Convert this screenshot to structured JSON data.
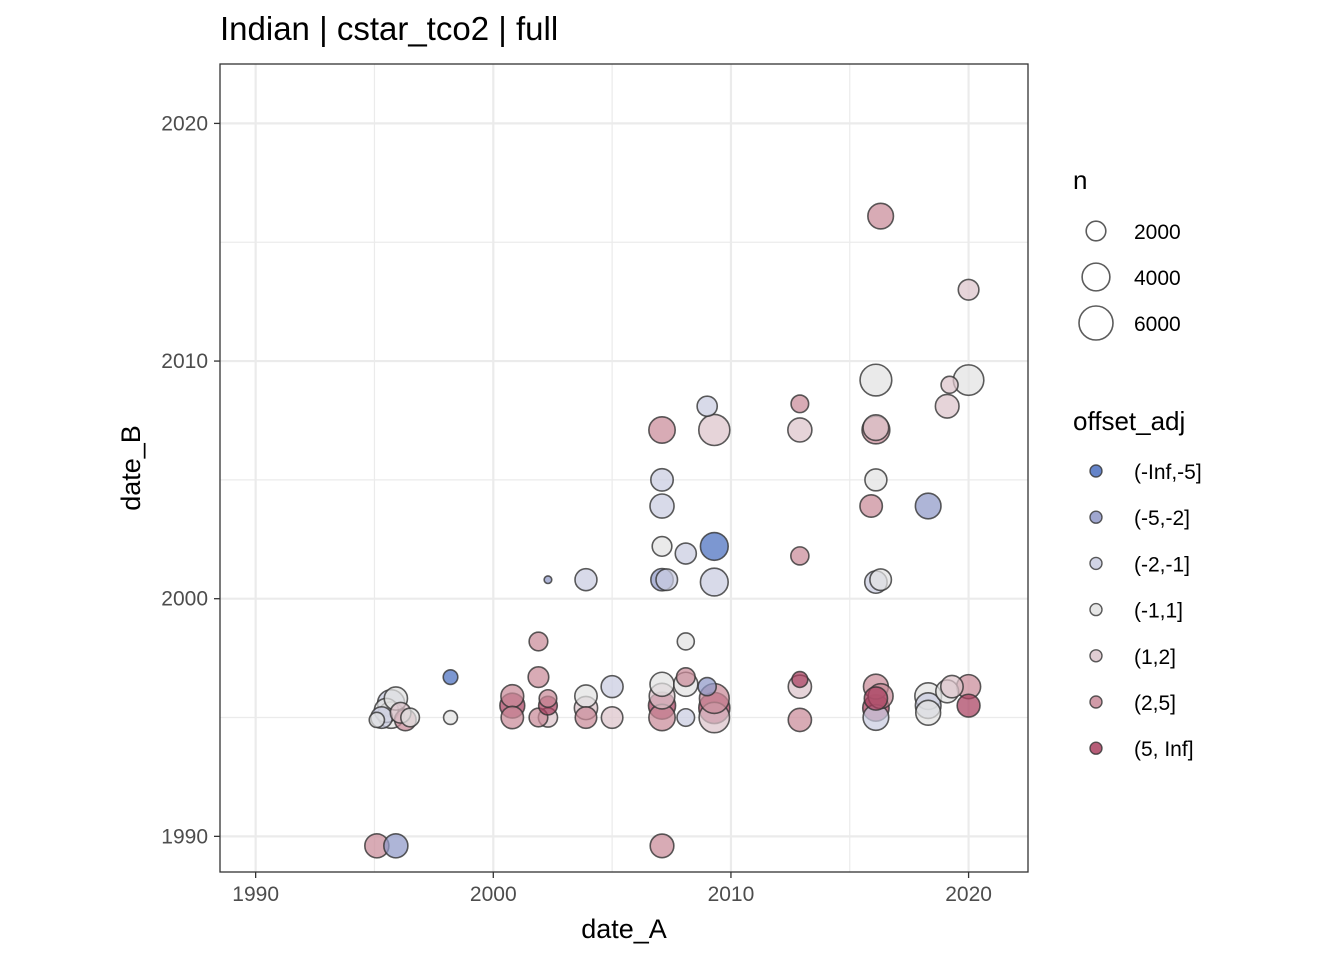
{
  "chart_data": {
    "type": "scatter",
    "title": "Indian | cstar_tco2 | full",
    "xlabel": "date_A",
    "ylabel": "date_B",
    "xlim": [
      1988.5,
      2022.5
    ],
    "ylim": [
      1988.5,
      2022.5
    ],
    "x_ticks": [
      1990,
      2000,
      2010,
      2020
    ],
    "y_ticks": [
      1990,
      2000,
      2010,
      2020
    ],
    "x_tick_labels": [
      "1990",
      "2000",
      "2010",
      "2020"
    ],
    "y_tick_labels": [
      "1990",
      "2000",
      "2010",
      "2020"
    ],
    "grid": true,
    "size_legend": {
      "title": "n",
      "entries": [
        {
          "label": "2000",
          "value": 2000
        },
        {
          "label": "4000",
          "value": 4000
        },
        {
          "label": "6000",
          "value": 6000
        }
      ]
    },
    "color_legend": {
      "title": "offset_adj",
      "categories": [
        {
          "label": "(-Inf,-5]",
          "color": "#4A6FBF"
        },
        {
          "label": "(-5,-2]",
          "color": "#8F98C8"
        },
        {
          "label": "(-2,-1]",
          "color": "#C9CCE0"
        },
        {
          "label": "(-1,1]",
          "color": "#E2E2E2"
        },
        {
          "label": "(1,2]",
          "color": "#DCC4CB"
        },
        {
          "label": "(2,5]",
          "color": "#C98A99"
        },
        {
          "label": "(5, Inf]",
          "color": "#A9405F"
        }
      ]
    },
    "points": [
      {
        "x": 1995.1,
        "y": 1994.9,
        "n": 1200,
        "cat": "(-1,1]"
      },
      {
        "x": 1995.3,
        "y": 1995.0,
        "n": 2400,
        "cat": "(-2,-1]"
      },
      {
        "x": 1995.5,
        "y": 1995.3,
        "n": 3000,
        "cat": "(-1,1]"
      },
      {
        "x": 1995.7,
        "y": 1995.6,
        "n": 3800,
        "cat": "(-2,-1]"
      },
      {
        "x": 1995.9,
        "y": 1995.8,
        "n": 2800,
        "cat": "(-1,1]"
      },
      {
        "x": 1995.7,
        "y": 1995.1,
        "n": 3600,
        "cat": "(-1,1]"
      },
      {
        "x": 1996.1,
        "y": 1995.2,
        "n": 2200,
        "cat": "(1,2]"
      },
      {
        "x": 1996.3,
        "y": 1994.9,
        "n": 2400,
        "cat": "(2,5]"
      },
      {
        "x": 1996.5,
        "y": 1995.0,
        "n": 1800,
        "cat": "(-1,1]"
      },
      {
        "x": 1995.1,
        "y": 1989.6,
        "n": 3000,
        "cat": "(2,5]"
      },
      {
        "x": 1995.9,
        "y": 1989.6,
        "n": 3000,
        "cat": "(-5,-2]"
      },
      {
        "x": 1998.2,
        "y": 1996.7,
        "n": 1100,
        "cat": "(-Inf,-5]"
      },
      {
        "x": 1998.2,
        "y": 1995.0,
        "n": 1000,
        "cat": "(-1,1]"
      },
      {
        "x": 2000.8,
        "y": 1995.0,
        "n": 2600,
        "cat": "(2,5]"
      },
      {
        "x": 2000.8,
        "y": 1995.5,
        "n": 3200,
        "cat": "(5, Inf]"
      },
      {
        "x": 2000.8,
        "y": 1995.9,
        "n": 2700,
        "cat": "(2,5]"
      },
      {
        "x": 2001.9,
        "y": 1995.0,
        "n": 1800,
        "cat": "(2,5]"
      },
      {
        "x": 2001.9,
        "y": 1996.7,
        "n": 2200,
        "cat": "(2,5]"
      },
      {
        "x": 2001.9,
        "y": 1998.2,
        "n": 1800,
        "cat": "(2,5]"
      },
      {
        "x": 2002.3,
        "y": 2000.8,
        "n": 300,
        "cat": "(-5,-2]"
      },
      {
        "x": 2002.3,
        "y": 1995.0,
        "n": 1900,
        "cat": "(1,2]"
      },
      {
        "x": 2002.3,
        "y": 1995.5,
        "n": 1800,
        "cat": "(5, Inf]"
      },
      {
        "x": 2002.3,
        "y": 1995.8,
        "n": 1600,
        "cat": "(2,5]"
      },
      {
        "x": 2003.9,
        "y": 1995.0,
        "n": 2400,
        "cat": "(2,5]"
      },
      {
        "x": 2003.9,
        "y": 1995.4,
        "n": 2800,
        "cat": "(1,2]"
      },
      {
        "x": 2003.9,
        "y": 1995.9,
        "n": 2600,
        "cat": "(-1,1]"
      },
      {
        "x": 2003.9,
        "y": 2000.8,
        "n": 2500,
        "cat": "(-2,-1]"
      },
      {
        "x": 2005.0,
        "y": 1995.0,
        "n": 2400,
        "cat": "(1,2]"
      },
      {
        "x": 2005.0,
        "y": 1996.3,
        "n": 2500,
        "cat": "(-2,-1]"
      },
      {
        "x": 2007.1,
        "y": 1995.0,
        "n": 3600,
        "cat": "(2,5]"
      },
      {
        "x": 2007.1,
        "y": 1995.5,
        "n": 3800,
        "cat": "(5, Inf]"
      },
      {
        "x": 2007.1,
        "y": 1995.9,
        "n": 3400,
        "cat": "(1,2]"
      },
      {
        "x": 2007.1,
        "y": 1996.4,
        "n": 3000,
        "cat": "(-1,1]"
      },
      {
        "x": 2007.1,
        "y": 1989.6,
        "n": 2900,
        "cat": "(2,5]"
      },
      {
        "x": 2007.1,
        "y": 2000.8,
        "n": 2600,
        "cat": "(-5,-2]"
      },
      {
        "x": 2007.3,
        "y": 2000.8,
        "n": 2400,
        "cat": "(-2,-1]"
      },
      {
        "x": 2007.1,
        "y": 2002.2,
        "n": 2000,
        "cat": "(-1,1]"
      },
      {
        "x": 2007.1,
        "y": 2003.9,
        "n": 3000,
        "cat": "(-2,-1]"
      },
      {
        "x": 2007.1,
        "y": 2005.0,
        "n": 2600,
        "cat": "(-2,-1]"
      },
      {
        "x": 2007.1,
        "y": 2007.1,
        "n": 3600,
        "cat": "(2,5]"
      },
      {
        "x": 2008.1,
        "y": 1995.0,
        "n": 1600,
        "cat": "(-2,-1]"
      },
      {
        "x": 2008.1,
        "y": 1996.4,
        "n": 3000,
        "cat": "(-1,1]"
      },
      {
        "x": 2008.1,
        "y": 1996.7,
        "n": 1800,
        "cat": "(2,5]"
      },
      {
        "x": 2008.1,
        "y": 1998.2,
        "n": 1500,
        "cat": "(-1,1]"
      },
      {
        "x": 2008.1,
        "y": 2001.9,
        "n": 2300,
        "cat": "(-2,-1]"
      },
      {
        "x": 2009.0,
        "y": 1996.3,
        "n": 1700,
        "cat": "(-5,-2]"
      },
      {
        "x": 2009.0,
        "y": 2008.1,
        "n": 2100,
        "cat": "(-2,-1]"
      },
      {
        "x": 2009.3,
        "y": 1995.0,
        "n": 4800,
        "cat": "(1,2]"
      },
      {
        "x": 2009.3,
        "y": 1995.4,
        "n": 5000,
        "cat": "(5, Inf]"
      },
      {
        "x": 2009.3,
        "y": 1995.8,
        "n": 4600,
        "cat": "(2,5]"
      },
      {
        "x": 2009.3,
        "y": 2000.7,
        "n": 4000,
        "cat": "(-2,-1]"
      },
      {
        "x": 2009.3,
        "y": 2002.2,
        "n": 4000,
        "cat": "(-Inf,-5]"
      },
      {
        "x": 2009.3,
        "y": 2007.1,
        "n": 5000,
        "cat": "(1,2]"
      },
      {
        "x": 2012.9,
        "y": 1994.9,
        "n": 2800,
        "cat": "(2,5]"
      },
      {
        "x": 2012.9,
        "y": 1996.3,
        "n": 2800,
        "cat": "(1,2]"
      },
      {
        "x": 2012.9,
        "y": 1996.6,
        "n": 1300,
        "cat": "(5, Inf]"
      },
      {
        "x": 2012.9,
        "y": 2001.8,
        "n": 1700,
        "cat": "(2,5]"
      },
      {
        "x": 2012.9,
        "y": 2007.1,
        "n": 3000,
        "cat": "(1,2]"
      },
      {
        "x": 2012.9,
        "y": 2008.2,
        "n": 1600,
        "cat": "(2,5]"
      },
      {
        "x": 2016.1,
        "y": 1995.0,
        "n": 3400,
        "cat": "(-2,-1]"
      },
      {
        "x": 2016.1,
        "y": 1995.4,
        "n": 3600,
        "cat": "(5, Inf]"
      },
      {
        "x": 2016.1,
        "y": 1995.8,
        "n": 2800,
        "cat": "(5, Inf]"
      },
      {
        "x": 2016.1,
        "y": 1996.3,
        "n": 3200,
        "cat": "(2,5]"
      },
      {
        "x": 2016.3,
        "y": 1995.9,
        "n": 3200,
        "cat": "(2,5]"
      },
      {
        "x": 2016.1,
        "y": 2000.7,
        "n": 2600,
        "cat": "(-2,-1]"
      },
      {
        "x": 2016.3,
        "y": 2000.8,
        "n": 2400,
        "cat": "(-1,1]"
      },
      {
        "x": 2015.9,
        "y": 2003.9,
        "n": 2600,
        "cat": "(2,5]"
      },
      {
        "x": 2016.1,
        "y": 2005.0,
        "n": 2500,
        "cat": "(-1,1]"
      },
      {
        "x": 2016.1,
        "y": 2007.1,
        "n": 4000,
        "cat": "(2,5]"
      },
      {
        "x": 2016.1,
        "y": 2007.2,
        "n": 3400,
        "cat": "(1,2]"
      },
      {
        "x": 2016.1,
        "y": 2009.2,
        "n": 5200,
        "cat": "(-1,1]"
      },
      {
        "x": 2016.3,
        "y": 2016.1,
        "n": 3400,
        "cat": "(2,5]"
      },
      {
        "x": 2018.3,
        "y": 1995.2,
        "n": 3200,
        "cat": "(-1,1]"
      },
      {
        "x": 2018.3,
        "y": 1995.5,
        "n": 3400,
        "cat": "(-2,-1]"
      },
      {
        "x": 2018.3,
        "y": 1995.9,
        "n": 3700,
        "cat": "(-1,1]"
      },
      {
        "x": 2018.3,
        "y": 2003.9,
        "n": 3400,
        "cat": "(-5,-2]"
      },
      {
        "x": 2019.1,
        "y": 1996.1,
        "n": 2700,
        "cat": "(-1,1]"
      },
      {
        "x": 2019.1,
        "y": 2008.1,
        "n": 2900,
        "cat": "(1,2]"
      },
      {
        "x": 2019.2,
        "y": 2009.0,
        "n": 1500,
        "cat": "(1,2]"
      },
      {
        "x": 2019.3,
        "y": 1996.3,
        "n": 2600,
        "cat": "(1,2]"
      },
      {
        "x": 2020.0,
        "y": 1995.5,
        "n": 2700,
        "cat": "(5, Inf]"
      },
      {
        "x": 2020.0,
        "y": 1996.3,
        "n": 3000,
        "cat": "(2,5]"
      },
      {
        "x": 2020.0,
        "y": 2009.2,
        "n": 4800,
        "cat": "(-1,1]"
      },
      {
        "x": 2020.0,
        "y": 2013.0,
        "n": 2200,
        "cat": "(1,2]"
      }
    ]
  }
}
